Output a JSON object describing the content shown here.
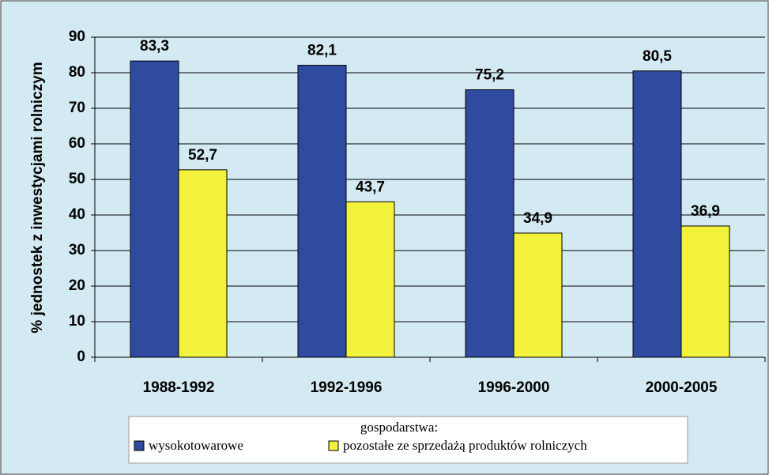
{
  "chart_data": {
    "type": "bar",
    "ylabel": "% jednostek z inwestycjami rolniczym",
    "categories": [
      "1988-1992",
      "1992-1996",
      "1996-2000",
      "2000-2005"
    ],
    "series": [
      {
        "name": "wysokotowarowe",
        "color": "#2f4b9f",
        "values": [
          83.3,
          82.1,
          75.2,
          80.5
        ],
        "value_labels": [
          "83,3",
          "82,1",
          "75,2",
          "80,5"
        ]
      },
      {
        "name": "pozostałe ze sprzedażą produktów rolniczych",
        "color": "#f2f23c",
        "values": [
          52.7,
          43.7,
          34.9,
          36.9
        ],
        "value_labels": [
          "52,7",
          "43,7",
          "34,9",
          "36,9"
        ]
      }
    ],
    "legend_title": "gospodarstwa:",
    "ylim": [
      0,
      90
    ],
    "yticks": [
      0,
      10,
      20,
      30,
      40,
      50,
      60,
      70,
      80,
      90
    ],
    "grid": true,
    "legend": "bottom"
  }
}
